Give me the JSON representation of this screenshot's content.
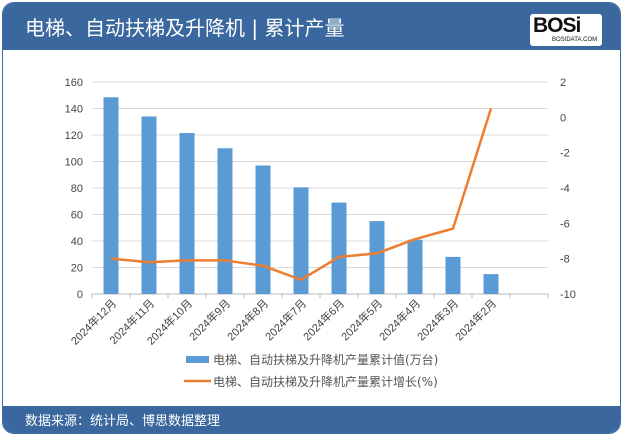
{
  "header": {
    "title": "电梯、自动扶梯及升降机 | 累计产量",
    "logo_text": "BOSi",
    "logo_sub": "BOSIDATA.COM"
  },
  "footer": {
    "source": "数据来源：统计局、博思数据整理"
  },
  "colors": {
    "header": "#3a679e",
    "bar": "#5b9bd5",
    "line": "#ed7d31"
  },
  "chart_data": {
    "type": "bar+line",
    "categories": [
      "2024年12月",
      "2024年11月",
      "2024年10月",
      "2024年9月",
      "2024年8月",
      "2024年7月",
      "2024年6月",
      "2024年5月",
      "2024年4月",
      "2024年3月",
      "2024年2月"
    ],
    "series": [
      {
        "name": "电梯、自动扶梯及升降机产量累计值(万台)",
        "type": "bar",
        "axis": "left",
        "values": [
          148.5,
          134,
          121.5,
          110,
          97,
          80.5,
          69,
          55,
          41,
          28,
          15
        ]
      },
      {
        "name": "电梯、自动扶梯及升降机产量累计增长(%)",
        "type": "line",
        "axis": "right",
        "values": [
          -8.0,
          -8.2,
          -8.1,
          -8.1,
          -8.4,
          -9.2,
          -7.9,
          -7.7,
          -6.9,
          -6.3,
          0.5
        ]
      }
    ],
    "left_axis": {
      "range": [
        0,
        160
      ],
      "ticks": [
        0,
        20,
        40,
        60,
        80,
        100,
        120,
        140,
        160
      ]
    },
    "right_axis": {
      "range": [
        -10,
        2
      ],
      "ticks": [
        -10,
        -8,
        -6,
        -4,
        -2,
        0,
        2
      ]
    },
    "grid": true,
    "legend": "bottom"
  }
}
